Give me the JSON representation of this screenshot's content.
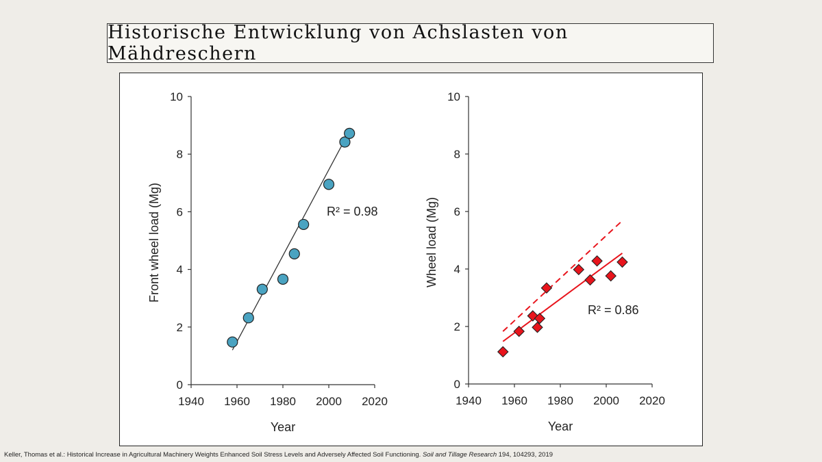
{
  "slide": {
    "title": "Historische Entwicklung von Achslasten von Mähdreschern",
    "citation": {
      "authors_title": "Keller, Thomas et al.: Historical Increase in Agricultural Machinery Weights Enhanced Soil Stress Levels and Adversely Affected Soil Functioning. ",
      "journal": "Soil and Tillage Research",
      "details": " 194, 104293, 2019"
    }
  },
  "colors": {
    "left_marker": "#4aa3c1",
    "right_marker": "#e8141c",
    "right_line": "#e8141c",
    "left_line": "#333333"
  },
  "chart_data": [
    {
      "type": "scatter",
      "xlabel": "Year",
      "ylabel": "Front wheel load (Mg)",
      "xlim": [
        1940,
        2020
      ],
      "ylim": [
        0,
        10
      ],
      "xticks": [
        1940,
        1960,
        1980,
        2000,
        2020
      ],
      "yticks": [
        0,
        2,
        4,
        6,
        8,
        10
      ],
      "marker": "circle",
      "annotation": "R² = 0.98",
      "points": [
        {
          "x": 1958,
          "y": 1.48
        },
        {
          "x": 1965,
          "y": 2.32
        },
        {
          "x": 1971,
          "y": 3.31
        },
        {
          "x": 1980,
          "y": 3.66
        },
        {
          "x": 1985,
          "y": 4.54
        },
        {
          "x": 1989,
          "y": 5.56
        },
        {
          "x": 2000,
          "y": 6.95
        },
        {
          "x": 2007,
          "y": 8.42
        },
        {
          "x": 2009,
          "y": 8.72
        }
      ],
      "trendlines": [
        {
          "style": "solid",
          "from": [
            1958,
            1.2
          ],
          "to": [
            2008,
            8.65
          ]
        }
      ]
    },
    {
      "type": "scatter",
      "xlabel": "Year",
      "ylabel": "Wheel load (Mg)",
      "xlim": [
        1940,
        2020
      ],
      "ylim": [
        0,
        10
      ],
      "xticks": [
        1940,
        1960,
        1980,
        2000,
        2020
      ],
      "yticks": [
        0,
        2,
        4,
        6,
        8,
        10
      ],
      "marker": "diamond",
      "annotation": "R² = 0.86",
      "points": [
        {
          "x": 1955,
          "y": 1.12
        },
        {
          "x": 1962,
          "y": 1.83
        },
        {
          "x": 1968,
          "y": 2.37
        },
        {
          "x": 1970,
          "y": 1.97
        },
        {
          "x": 1971,
          "y": 2.28
        },
        {
          "x": 1974,
          "y": 3.34
        },
        {
          "x": 1988,
          "y": 3.98
        },
        {
          "x": 1993,
          "y": 3.62
        },
        {
          "x": 1996,
          "y": 4.28
        },
        {
          "x": 2002,
          "y": 3.76
        },
        {
          "x": 2007,
          "y": 4.24
        }
      ],
      "trendlines": [
        {
          "style": "solid",
          "from": [
            1955,
            1.48
          ],
          "to": [
            2007,
            4.55
          ]
        },
        {
          "style": "dashed",
          "from": [
            1955,
            1.83
          ],
          "to": [
            2007,
            5.68
          ]
        }
      ]
    }
  ]
}
